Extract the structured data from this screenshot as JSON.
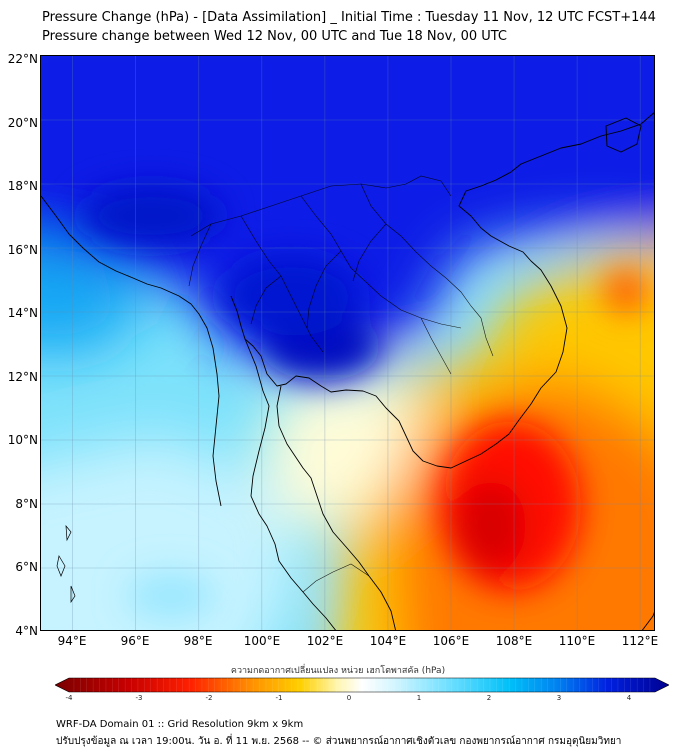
{
  "header": {
    "title_line1": "Pressure Change (hPa) - [Data Assimilation] _ Initial Time : Tuesday 11 Nov, 12 UTC FCST+144",
    "title_line2": "Pressure change between Wed 12 Nov, 00 UTC and Tue 18 Nov, 00 UTC"
  },
  "map": {
    "variable": "Pressure Change",
    "units": "hPa",
    "lat_labels": [
      "22°N",
      "20°N",
      "18°N",
      "16°N",
      "14°N",
      "12°N",
      "10°N",
      "8°N",
      "6°N",
      "4°N"
    ],
    "lon_labels": [
      "94°E",
      "96°E",
      "98°E",
      "100°E",
      "102°E",
      "104°E",
      "106°E",
      "108°E",
      "110°E",
      "112°E"
    ],
    "lat_range": [
      4,
      22
    ],
    "lon_range": [
      93,
      112.5
    ],
    "gridlines": true
  },
  "colorbar": {
    "label": "ความกดอากาศเปลี่ยนแปลง หน่วย เฮกโตพาสคัล (hPa)",
    "ticks": [
      "-4",
      "-3",
      "-2",
      "-1",
      "0",
      "1",
      "2",
      "3",
      "4"
    ],
    "range": [
      -4,
      4
    ],
    "colors": {
      "min": "#7a0000",
      "neg_mid": "#ff2000",
      "neg_low": "#ffd000",
      "zero": "#ffffff",
      "pos_low": "#b8f0ff",
      "pos_mid": "#00c8ff",
      "max": "#000090"
    }
  },
  "footer": {
    "line1": "WRF-DA Domain 01 :: Grid Resolution 9km x 9km",
    "line2": "ปรับปรุงข้อมูล ณ เวลา 19:00น. วัน อ. ที่ 11 พ.ย. 2568 -- © ส่วนพยากรณ์อากาศเชิงตัวเลข กองพยากรณ์อากาศ กรมอุตุนิยมวิทยา"
  }
}
